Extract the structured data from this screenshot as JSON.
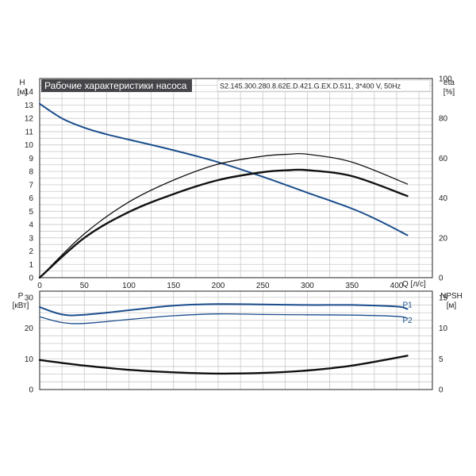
{
  "chart_data": [
    {
      "type": "line",
      "title": "Рабочие характеристики насоса",
      "subtitle": "S2.145.300.280.8.62E.D.421.G.EX.D.511, 3*400 V, 50Hz",
      "xlabel": "Q [л/с]",
      "ylabel_left": "H",
      "ylabel_left_unit": "[м]",
      "ylabel_right": "eta",
      "ylabel_right_unit": "[%]",
      "xlim": [
        0,
        440
      ],
      "ylim_left": [
        0,
        15
      ],
      "ylim_right": [
        0,
        100
      ],
      "x_ticks": [
        "0",
        "50",
        "100",
        "150",
        "200",
        "250",
        "300",
        "350",
        "400"
      ],
      "y_left_ticks": [
        "0",
        "1",
        "2",
        "3",
        "4",
        "5",
        "6",
        "7",
        "8",
        "9",
        "10",
        "11",
        "12",
        "13",
        "14"
      ],
      "y_right_ticks": [
        "0",
        "20",
        "40",
        "60",
        "80",
        "100"
      ],
      "grid": true,
      "series": [
        {
          "axis": "left",
          "color": "#1a4d8c",
          "x": [
            0,
            25,
            50,
            75,
            100,
            150,
            200,
            250,
            300,
            350,
            380,
            412
          ],
          "y": [
            13.1,
            12.0,
            11.3,
            10.8,
            10.4,
            9.6,
            8.7,
            7.6,
            6.4,
            5.2,
            4.3,
            3.2
          ]
        },
        {
          "axis": "right",
          "color": "#111111",
          "x": [
            0,
            50,
            100,
            150,
            200,
            250,
            280,
            300,
            350,
            412
          ],
          "y": [
            0,
            22,
            38,
            49,
            57,
            61,
            62,
            62,
            58,
            47
          ]
        },
        {
          "axis": "right",
          "color": "#111111",
          "x": [
            0,
            50,
            100,
            150,
            200,
            250,
            280,
            300,
            350,
            412
          ],
          "y": [
            0,
            20,
            33,
            42,
            49,
            53,
            54,
            54,
            51,
            41
          ]
        }
      ]
    },
    {
      "type": "line",
      "ylabel_left": "P",
      "ylabel_left_unit": "[кВт]",
      "ylabel_right": "NPSH",
      "ylabel_right_unit": "[м]",
      "xlim": [
        0,
        440
      ],
      "ylim_left": [
        0,
        32
      ],
      "ylim_right": [
        0,
        16
      ],
      "y_left_ticks": [
        "0",
        "10",
        "20",
        "30"
      ],
      "y_right_ticks": [
        "0",
        "5",
        "10",
        "15"
      ],
      "grid": true,
      "series": [
        {
          "name": "P1",
          "axis": "left",
          "color": "#1a4d8c",
          "x": [
            0,
            25,
            50,
            100,
            150,
            200,
            250,
            300,
            350,
            400,
            412
          ],
          "y": [
            26.8,
            24.4,
            24.3,
            25.8,
            27.3,
            27.8,
            27.7,
            27.5,
            27.5,
            27.0,
            26.2
          ]
        },
        {
          "name": "P2",
          "axis": "left",
          "color": "#1a4d8c",
          "x": [
            0,
            25,
            50,
            100,
            150,
            200,
            250,
            300,
            350,
            400,
            412
          ],
          "y": [
            23.7,
            21.8,
            21.5,
            22.8,
            24.0,
            24.6,
            24.4,
            24.3,
            24.2,
            23.8,
            23.2
          ]
        },
        {
          "axis": "right",
          "color": "#111111",
          "x": [
            0,
            50,
            100,
            150,
            200,
            250,
            300,
            350,
            412
          ],
          "y": [
            4.8,
            3.9,
            3.2,
            2.8,
            2.6,
            2.7,
            3.1,
            3.9,
            5.5
          ]
        }
      ]
    }
  ]
}
